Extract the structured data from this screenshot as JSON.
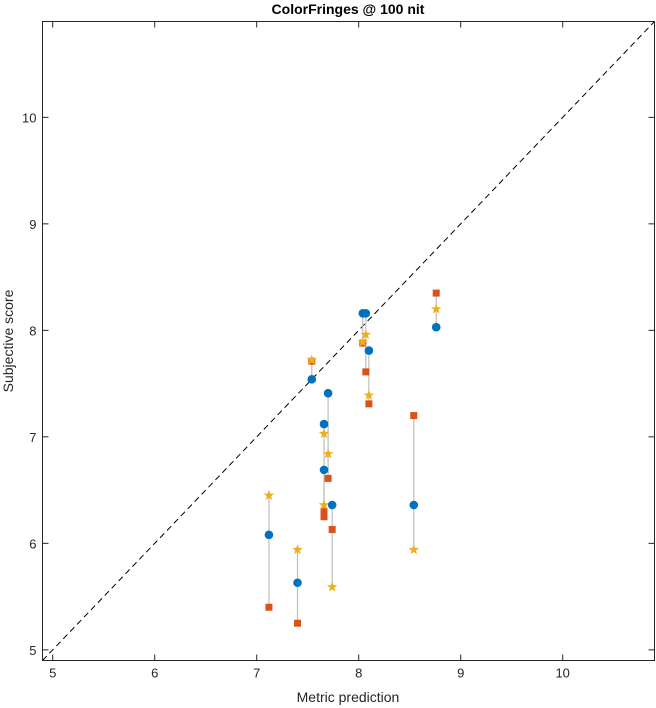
{
  "chart_data": {
    "type": "scatter",
    "title": "ColorFringes @ 100 nit",
    "xlabel": "Metric prediction",
    "ylabel": "Subjective score",
    "xlim": [
      4.9,
      10.9
    ],
    "ylim": [
      4.9,
      10.9
    ],
    "xticks": [
      5,
      6,
      7,
      8,
      9,
      10
    ],
    "yticks": [
      5,
      6,
      7,
      8,
      9,
      10
    ],
    "grid": false,
    "box": true,
    "reference_line": {
      "from": [
        4.9,
        4.9
      ],
      "to": [
        10.9,
        10.9
      ],
      "style": "dashed",
      "color": "#000000"
    },
    "colors": {
      "circle": "#0072BD",
      "square": "#D95319",
      "star": "#EDB120",
      "connector": "#BDBDBD",
      "axis": "#262626"
    },
    "groups": [
      {
        "x": 7.12,
        "circle": 6.08,
        "square": 5.4,
        "star": 6.45
      },
      {
        "x": 7.4,
        "circle": 5.63,
        "square": 5.25,
        "star": 5.94
      },
      {
        "x": 7.54,
        "circle": 7.54,
        "square": 7.71,
        "star": 7.72
      },
      {
        "x": 7.66,
        "circle": 7.12,
        "square": 6.3,
        "star": 7.03
      },
      {
        "x": 7.66,
        "circle": 6.69,
        "square": 6.25,
        "star": 6.36
      },
      {
        "x": 7.7,
        "circle": 7.41,
        "square": 6.61,
        "star": 6.84
      },
      {
        "x": 7.74,
        "circle": 6.36,
        "square": 6.13,
        "star": 5.59
      },
      {
        "x": 8.04,
        "circle": 8.16,
        "square": 7.88,
        "star": 7.89
      },
      {
        "x": 8.07,
        "circle": 8.16,
        "square": 7.61,
        "star": 7.96
      },
      {
        "x": 8.1,
        "circle": 7.81,
        "square": 7.31,
        "star": 7.39
      },
      {
        "x": 8.54,
        "circle": 6.36,
        "square": 7.2,
        "star": 5.94
      },
      {
        "x": 8.76,
        "circle": 8.03,
        "square": 8.35,
        "star": 8.2
      }
    ]
  }
}
